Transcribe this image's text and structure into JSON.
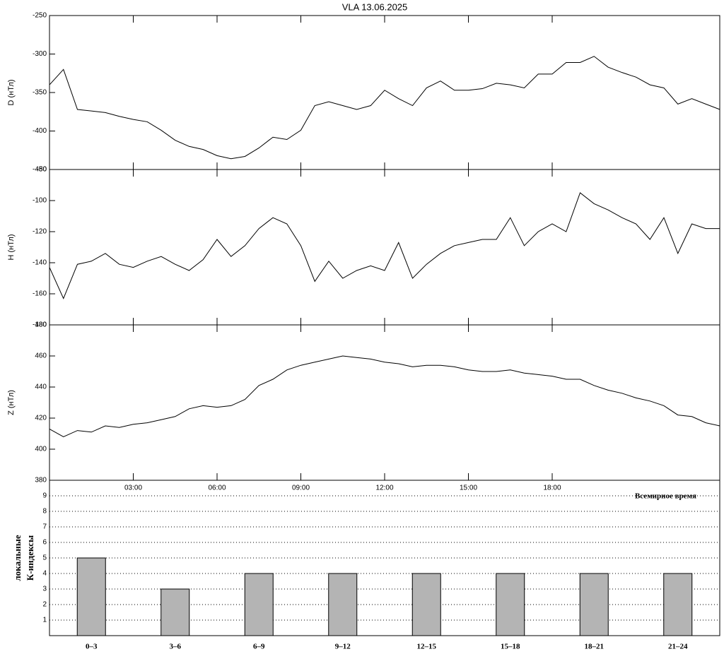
{
  "chart_data": [
    {
      "type": "line",
      "title": "VLA   13.06.2025",
      "ylabel": "D (нТл)",
      "xlim": [
        0,
        24
      ],
      "ylim": [
        -450,
        -250
      ],
      "yticks": [
        -450,
        -400,
        -350,
        -300,
        -250
      ],
      "color": "#000000",
      "x": [
        0,
        0.5,
        1,
        1.5,
        2,
        2.5,
        3,
        3.5,
        4,
        4.5,
        5,
        5.5,
        6,
        6.5,
        7,
        7.5,
        8,
        8.5,
        9,
        9.5,
        10,
        10.5,
        11,
        11.5,
        12,
        12.5,
        13,
        13.5,
        14,
        14.5,
        15,
        15.5,
        16,
        16.5,
        17,
        17.5,
        18,
        18.5,
        19,
        19.5,
        20,
        20.5,
        21,
        21.5,
        22,
        22.5,
        23,
        23.5,
        24
      ],
      "values": [
        -340,
        -320,
        -372,
        -374,
        -376,
        -381,
        -385,
        -388,
        -399,
        -412,
        -420,
        -424,
        -432,
        -436,
        -433,
        -422,
        -408,
        -411,
        -399,
        -367,
        -362,
        -367,
        -372,
        -367,
        -347,
        -358,
        -367,
        -344,
        -335,
        -347,
        -347,
        -345,
        -338,
        -340,
        -344,
        -326,
        -326,
        -311,
        -311,
        -303,
        -317,
        -324,
        -330,
        -340,
        -344,
        -365,
        -358,
        -365,
        -372
      ]
    },
    {
      "type": "line",
      "ylabel": "H (нТл)",
      "xlim": [
        0,
        24
      ],
      "ylim": [
        -180,
        -80
      ],
      "yticks": [
        -180,
        -160,
        -140,
        -120,
        -100,
        -80
      ],
      "color": "#000000",
      "x": [
        0,
        0.5,
        1,
        1.5,
        2,
        2.5,
        3,
        3.5,
        4,
        4.5,
        5,
        5.5,
        6,
        6.5,
        7,
        7.5,
        8,
        8.5,
        9,
        9.5,
        10,
        10.5,
        11,
        11.5,
        12,
        12.5,
        13,
        13.5,
        14,
        14.5,
        15,
        15.5,
        16,
        16.5,
        17,
        17.5,
        18,
        18.5,
        19,
        19.5,
        20,
        20.5,
        21,
        21.5,
        22,
        22.5,
        23,
        23.5,
        24
      ],
      "values": [
        -143,
        -163,
        -141,
        -139,
        -134,
        -141,
        -143,
        -139,
        -136,
        -141,
        -145,
        -138,
        -125,
        -136,
        -129,
        -118,
        -111,
        -115,
        -129,
        -152,
        -139,
        -150,
        -145,
        -142,
        -145,
        -127,
        -150,
        -141,
        -134,
        -129,
        -127,
        -125,
        -125,
        -111,
        -129,
        -120,
        -115,
        -120,
        -95,
        -102,
        -106,
        -111,
        -115,
        -125,
        -111,
        -134,
        -115,
        -118,
        -118
      ]
    },
    {
      "type": "line",
      "ylabel": "Z (нТл)",
      "xlabel": "Всемирное время",
      "xlim": [
        0,
        24
      ],
      "ylim": [
        380,
        480
      ],
      "yticks": [
        380,
        400,
        420,
        440,
        460,
        480
      ],
      "color": "#000000",
      "xticks": [
        {
          "value": 3,
          "label": "03:00"
        },
        {
          "value": 6,
          "label": "06:00"
        },
        {
          "value": 9,
          "label": "09:00"
        },
        {
          "value": 12,
          "label": "12:00"
        },
        {
          "value": 15,
          "label": "15:00"
        },
        {
          "value": 18,
          "label": "18:00"
        }
      ],
      "x": [
        0,
        0.5,
        1,
        1.5,
        2,
        2.5,
        3,
        3.5,
        4,
        4.5,
        5,
        5.5,
        6,
        6.5,
        7,
        7.5,
        8,
        8.5,
        9,
        9.5,
        10,
        10.5,
        11,
        11.5,
        12,
        12.5,
        13,
        13.5,
        14,
        14.5,
        15,
        15.5,
        16,
        16.5,
        17,
        17.5,
        18,
        18.5,
        19,
        19.5,
        20,
        20.5,
        21,
        21.5,
        22,
        22.5,
        23,
        23.5,
        24
      ],
      "values": [
        413,
        408,
        412,
        411,
        415,
        414,
        416,
        417,
        419,
        421,
        426,
        428,
        427,
        428,
        432,
        441,
        445,
        451,
        454,
        456,
        458,
        460,
        459,
        458,
        456,
        455,
        453,
        454,
        454,
        453,
        451,
        450,
        450,
        451,
        449,
        448,
        447,
        445,
        445,
        441,
        438,
        436,
        433,
        431,
        428,
        422,
        421,
        417,
        415
      ]
    },
    {
      "type": "bar",
      "ylabel": [
        "локальные",
        "К-индексы"
      ],
      "ylim": [
        0,
        10
      ],
      "yticks": [
        1,
        2,
        3,
        4,
        5,
        6,
        7,
        8,
        9
      ],
      "grid": true,
      "color": "#b4b4b4",
      "categories": [
        "0–3",
        "3–6",
        "6–9",
        "9–12",
        "12–15",
        "15–18",
        "18–21",
        "21–24"
      ],
      "values": [
        5,
        3,
        4,
        4,
        4,
        4,
        4,
        4
      ]
    }
  ]
}
